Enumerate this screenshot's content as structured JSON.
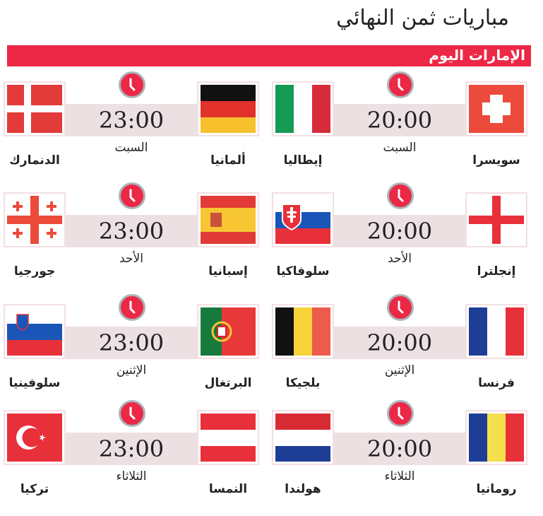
{
  "title": "مباريات ثمن النهائي",
  "brand": "الإمارات اليوم",
  "colors": {
    "accent": "#ec2847",
    "bar": "#ede0e2"
  },
  "matches": [
    {
      "home": "سويسرا",
      "home_flag": "switzerland-flag",
      "away": "إيطاليا",
      "away_flag": "italy-flag",
      "time": "20:00",
      "day": "السبت"
    },
    {
      "home": "ألمانيا",
      "home_flag": "germany-flag",
      "away": "الدنمارك",
      "away_flag": "denmark-flag",
      "time": "23:00",
      "day": "السبت"
    },
    {
      "home": "إنجلترا",
      "home_flag": "england-flag",
      "away": "سلوفاكيا",
      "away_flag": "slovakia-flag",
      "time": "20:00",
      "day": "الأحد"
    },
    {
      "home": "إسبانيا",
      "home_flag": "spain-flag",
      "away": "جورجيا",
      "away_flag": "georgia-flag",
      "time": "23:00",
      "day": "الأحد"
    },
    {
      "home": "فرنسا",
      "home_flag": "france-flag",
      "away": "بلجيكا",
      "away_flag": "belgium-flag",
      "time": "20:00",
      "day": "الإثنين"
    },
    {
      "home": "البرتغال",
      "home_flag": "portugal-flag",
      "away": "سلوفينيا",
      "away_flag": "slovenia-flag",
      "time": "23:00",
      "day": "الإثنين"
    },
    {
      "home": "رومانيا",
      "home_flag": "romania-flag",
      "away": "هولندا",
      "away_flag": "netherlands-flag",
      "time": "20:00",
      "day": "الثلاثاء"
    },
    {
      "home": "النمسا",
      "home_flag": "austria-flag",
      "away": "تركيا",
      "away_flag": "turkey-flag",
      "time": "23:00",
      "day": "الثلاثاء"
    }
  ]
}
